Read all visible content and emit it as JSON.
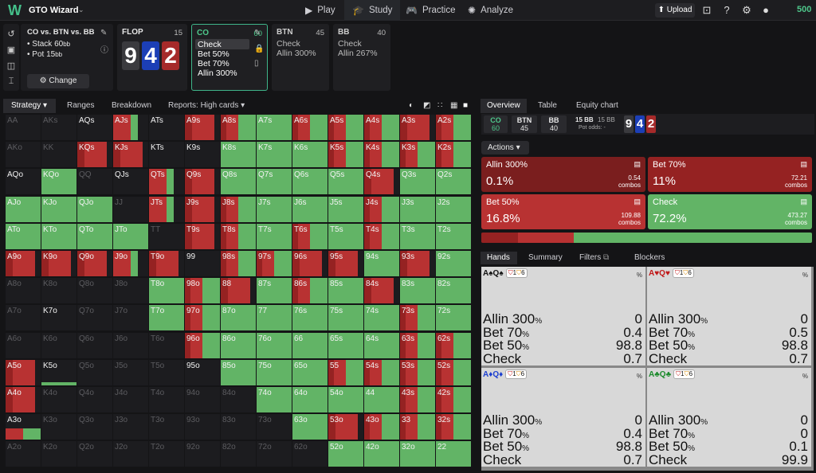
{
  "app": {
    "brand": "GTO Wizard",
    "balance": "500",
    "upload": "Upload"
  },
  "nav": [
    {
      "label": "Play",
      "icon": "play-icon"
    },
    {
      "label": "Study",
      "icon": "study-icon"
    },
    {
      "label": "Practice",
      "icon": "gamepad-icon"
    },
    {
      "label": "Analyze",
      "icon": "analyze-icon"
    }
  ],
  "spot": {
    "title": "CO vs. BTN vs. BB",
    "stack": "Stack 60",
    "pot": "Pot 15",
    "unit": "bb",
    "change": "Change"
  },
  "flop": {
    "title": "FLOP",
    "count": "15",
    "cards": [
      {
        "rank": "9",
        "color": "#3a3a3e"
      },
      {
        "rank": "4",
        "color": "#1c3fb6"
      },
      {
        "rank": "2",
        "color": "#a62a2a"
      }
    ]
  },
  "nodes": [
    {
      "pos": "CO",
      "count": "60",
      "actions": [
        "Check",
        "Bet 50%",
        "Bet 70%",
        "Allin 300%"
      ]
    },
    {
      "pos": "BTN",
      "count": "45",
      "actions": [
        "Check",
        "Allin 300%"
      ]
    },
    {
      "pos": "BB",
      "count": "40",
      "actions": [
        "Check",
        "Allin 267%"
      ]
    }
  ],
  "left_tabs": [
    "Strategy",
    "Ranges",
    "Breakdown",
    "Reports: High cards"
  ],
  "right_tabs": [
    "Overview",
    "Table",
    "Equity chart"
  ],
  "players": [
    {
      "pos": "CO",
      "stack": "60"
    },
    {
      "pos": "BTN",
      "stack": "45"
    },
    {
      "pos": "BB",
      "stack": "40"
    }
  ],
  "potinfo": {
    "pot": "15 BB",
    "pot2": "15 BB",
    "odds": "Pot odds:",
    "odds_val": "-"
  },
  "actions_label": "Actions",
  "actions": [
    {
      "name": "Allin 300%",
      "pct": "0.1%",
      "combos": "0.54",
      "color": "#7a1e1e"
    },
    {
      "name": "Bet 70%",
      "pct": "11%",
      "combos": "72.21",
      "color": "#952222"
    },
    {
      "name": "Bet 50%",
      "pct": "16.8%",
      "combos": "109.88",
      "color": "#b83232"
    },
    {
      "name": "Check",
      "pct": "72.2%",
      "combos": "473.27",
      "color": "#62b466"
    }
  ],
  "combos_word": "combos",
  "freq_bar": [
    0.1,
    11,
    16.8,
    72.2
  ],
  "hand_tabs": [
    "Hands",
    "Summary",
    "Filters",
    "Blockers"
  ],
  "hands": [
    {
      "cards": "A♠Q♠",
      "suit_color": "#111",
      "badges": [
        "1",
        "6"
      ],
      "rows": [
        [
          "Allin 300",
          "0"
        ],
        [
          "Bet 70",
          "0.4"
        ],
        [
          "Bet 50",
          "98.8"
        ],
        [
          "Check",
          "0.7"
        ]
      ]
    },
    {
      "cards": "A♥Q♥",
      "suit_color": "#c01818",
      "badges": [
        "1",
        "6"
      ],
      "rows": [
        [
          "Allin 300",
          "0"
        ],
        [
          "Bet 70",
          "0.5"
        ],
        [
          "Bet 50",
          "98.8"
        ],
        [
          "Check",
          "0.7"
        ]
      ]
    },
    {
      "cards": "A♦Q♦",
      "suit_color": "#1c3fd0",
      "badges": [
        "1",
        "6"
      ],
      "rows": [
        [
          "Allin 300",
          "0"
        ],
        [
          "Bet 70",
          "0.4"
        ],
        [
          "Bet 50",
          "98.8"
        ],
        [
          "Check",
          "0.7"
        ]
      ]
    },
    {
      "cards": "A♣Q♣",
      "suit_color": "#1a8a2a",
      "badges": [
        "1",
        "6"
      ],
      "rows": [
        [
          "Allin 300",
          "0"
        ],
        [
          "Bet 70",
          "0"
        ],
        [
          "Bet 50",
          "0.1"
        ],
        [
          "Check",
          "99.9"
        ]
      ]
    }
  ],
  "matrix": [
    [
      [
        "AA",
        0
      ],
      [
        "AKs",
        0
      ],
      [
        "AQs",
        1
      ],
      [
        "AJs",
        2
      ],
      [
        "ATs",
        1
      ],
      [
        "A9s",
        3
      ],
      [
        "A8s",
        4
      ],
      [
        "A7s",
        5
      ],
      [
        "A6s",
        4
      ],
      [
        "A5s",
        4
      ],
      [
        "A4s",
        4
      ],
      [
        "A3s",
        3
      ],
      [
        "A2s",
        4
      ]
    ],
    [
      [
        "AKo",
        0
      ],
      [
        "KK",
        0
      ],
      [
        "KQs",
        3
      ],
      [
        "KJs",
        3
      ],
      [
        "KTs",
        1
      ],
      [
        "K9s",
        1
      ],
      [
        "K8s",
        5
      ],
      [
        "K7s",
        5
      ],
      [
        "K6s",
        5
      ],
      [
        "K5s",
        4
      ],
      [
        "K4s",
        4
      ],
      [
        "K3s",
        4
      ],
      [
        "K2s",
        4
      ]
    ],
    [
      [
        "AQo",
        1
      ],
      [
        "KQo",
        5
      ],
      [
        "QQ",
        0
      ],
      [
        "QJs",
        1
      ],
      [
        "QTs",
        2
      ],
      [
        "Q9s",
        3
      ],
      [
        "Q8s",
        5
      ],
      [
        "Q7s",
        5
      ],
      [
        "Q6s",
        5
      ],
      [
        "Q5s",
        5
      ],
      [
        "Q4s",
        3
      ],
      [
        "Q3s",
        5
      ],
      [
        "Q2s",
        5
      ]
    ],
    [
      [
        "AJo",
        5
      ],
      [
        "KJo",
        5
      ],
      [
        "QJo",
        5
      ],
      [
        "JJ",
        0
      ],
      [
        "JTs",
        2
      ],
      [
        "J9s",
        3
      ],
      [
        "J8s",
        4
      ],
      [
        "J7s",
        5
      ],
      [
        "J6s",
        5
      ],
      [
        "J5s",
        5
      ],
      [
        "J4s",
        4
      ],
      [
        "J3s",
        5
      ],
      [
        "J2s",
        5
      ]
    ],
    [
      [
        "ATo",
        5
      ],
      [
        "KTo",
        5
      ],
      [
        "QTo",
        5
      ],
      [
        "JTo",
        5
      ],
      [
        "TT",
        0
      ],
      [
        "T9s",
        3
      ],
      [
        "T8s",
        4
      ],
      [
        "T7s",
        5
      ],
      [
        "T6s",
        4
      ],
      [
        "T5s",
        5
      ],
      [
        "T4s",
        4
      ],
      [
        "T3s",
        5
      ],
      [
        "T2s",
        5
      ]
    ],
    [
      [
        "A9o",
        3
      ],
      [
        "K9o",
        3
      ],
      [
        "Q9o",
        3
      ],
      [
        "J9o",
        2
      ],
      [
        "T9o",
        3
      ],
      [
        "99",
        1
      ],
      [
        "98s",
        4
      ],
      [
        "97s",
        4
      ],
      [
        "96s",
        3
      ],
      [
        "95s",
        3
      ],
      [
        "94s",
        5
      ],
      [
        "93s",
        3
      ],
      [
        "92s",
        5
      ]
    ],
    [
      [
        "A8o",
        0
      ],
      [
        "K8o",
        0
      ],
      [
        "Q8o",
        0
      ],
      [
        "J8o",
        0
      ],
      [
        "T8o",
        5
      ],
      [
        "98o",
        4
      ],
      [
        "88",
        3
      ],
      [
        "87s",
        5
      ],
      [
        "86s",
        4
      ],
      [
        "85s",
        5
      ],
      [
        "84s",
        3
      ],
      [
        "83s",
        5
      ],
      [
        "82s",
        5
      ]
    ],
    [
      [
        "A7o",
        0
      ],
      [
        "K7o",
        1
      ],
      [
        "Q7o",
        0
      ],
      [
        "J7o",
        0
      ],
      [
        "T7o",
        5
      ],
      [
        "97o",
        4
      ],
      [
        "87o",
        5
      ],
      [
        "77",
        5
      ],
      [
        "76s",
        5
      ],
      [
        "75s",
        5
      ],
      [
        "74s",
        5
      ],
      [
        "73s",
        4
      ],
      [
        "72s",
        5
      ]
    ],
    [
      [
        "A6o",
        0
      ],
      [
        "K6o",
        0
      ],
      [
        "Q6o",
        0
      ],
      [
        "J6o",
        0
      ],
      [
        "T6o",
        0
      ],
      [
        "96o",
        4
      ],
      [
        "86o",
        5
      ],
      [
        "76o",
        5
      ],
      [
        "66",
        5
      ],
      [
        "65s",
        5
      ],
      [
        "64s",
        5
      ],
      [
        "63s",
        4
      ],
      [
        "62s",
        4
      ]
    ],
    [
      [
        "A5o",
        3
      ],
      [
        "K5o",
        6
      ],
      [
        "Q5o",
        0
      ],
      [
        "J5o",
        0
      ],
      [
        "T5o",
        0
      ],
      [
        "95o",
        1
      ],
      [
        "85o",
        5
      ],
      [
        "75o",
        5
      ],
      [
        "65o",
        5
      ],
      [
        "55",
        4
      ],
      [
        "54s",
        4
      ],
      [
        "53s",
        4
      ],
      [
        "52s",
        4
      ]
    ],
    [
      [
        "A4o",
        3
      ],
      [
        "K4o",
        0
      ],
      [
        "Q4o",
        0
      ],
      [
        "J4o",
        0
      ],
      [
        "T4o",
        0
      ],
      [
        "94o",
        0
      ],
      [
        "84o",
        0
      ],
      [
        "74o",
        5
      ],
      [
        "64o",
        5
      ],
      [
        "54o",
        5
      ],
      [
        "44",
        5
      ],
      [
        "43s",
        4
      ],
      [
        "42s",
        4
      ]
    ],
    [
      [
        "A3o",
        7
      ],
      [
        "K3o",
        0
      ],
      [
        "Q3o",
        0
      ],
      [
        "J3o",
        0
      ],
      [
        "T3o",
        0
      ],
      [
        "93o",
        0
      ],
      [
        "83o",
        0
      ],
      [
        "73o",
        0
      ],
      [
        "63o",
        5
      ],
      [
        "53o",
        3
      ],
      [
        "43o",
        4
      ],
      [
        "33",
        4
      ],
      [
        "32s",
        4
      ]
    ],
    [
      [
        "A2o",
        0
      ],
      [
        "K2o",
        0
      ],
      [
        "Q2o",
        0
      ],
      [
        "J2o",
        0
      ],
      [
        "T2o",
        0
      ],
      [
        "92o",
        0
      ],
      [
        "82o",
        0
      ],
      [
        "72o",
        0
      ],
      [
        "62o",
        0
      ],
      [
        "52o",
        5
      ],
      [
        "42o",
        5
      ],
      [
        "32o",
        5
      ],
      [
        "22",
        5
      ]
    ]
  ]
}
